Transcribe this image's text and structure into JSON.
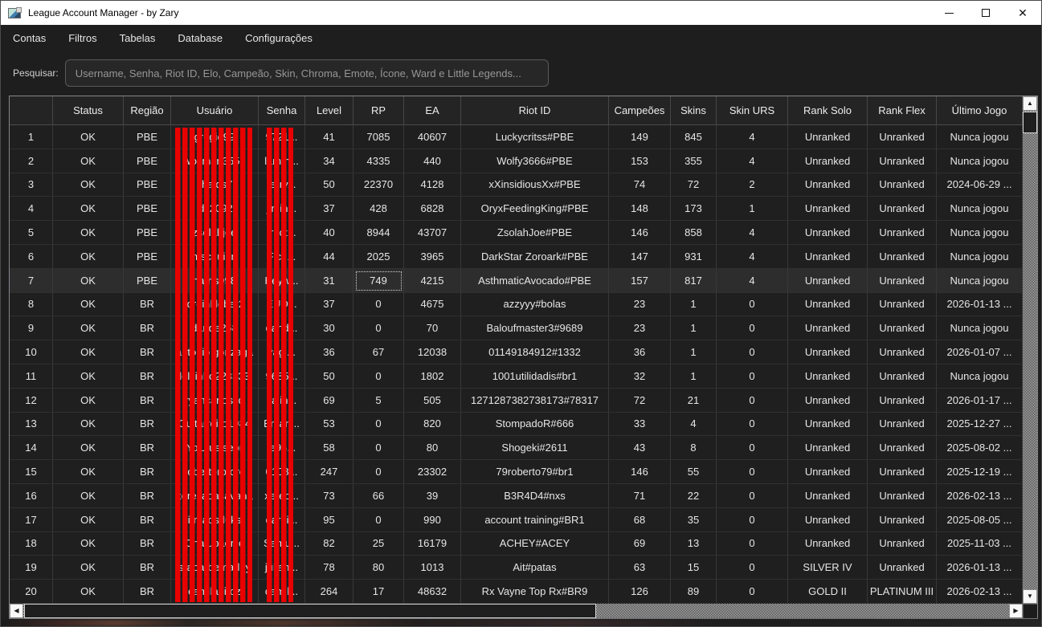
{
  "window": {
    "title": "League Account Manager - by Zary"
  },
  "titlebar": {
    "minimize": "—",
    "maximize": "",
    "close": "✕"
  },
  "menu": {
    "items": [
      "Contas",
      "Filtros",
      "Tabelas",
      "Database",
      "Configurações"
    ]
  },
  "search": {
    "label": "Pesquisar:",
    "placeholder": "Username, Senha, Riot ID, Elo, Campeão, Skin, Chroma, Emote, Ícone, Ward e Little Legends...",
    "value": ""
  },
  "table": {
    "columns": [
      "",
      "Status",
      "Região",
      "Usuário",
      "Senha",
      "Level",
      "RP",
      "EA",
      "Riot ID",
      "Campeões",
      "Skins",
      "Skin URS",
      "Rank Solo",
      "Rank Flex",
      "Último Jogo"
    ],
    "selected_row_index": 6,
    "focused_cell": {
      "row_index": 6,
      "col_index": 6
    },
    "rows": [
      [
        "1",
        "OK",
        "PBE",
        "gregie99",
        "9721...",
        "41",
        "7085",
        "40607",
        "Luckycritss#PBE",
        "149",
        "845",
        "4",
        "Unranked",
        "Unranked",
        "Nunca jogou"
      ],
      [
        "2",
        "OK",
        "PBE",
        "wolfman3555",
        "lamth...",
        "34",
        "4335",
        "440",
        "Wolfy3666#PBE",
        "153",
        "355",
        "4",
        "Unranked",
        "Unranked",
        "Nunca jogou"
      ],
      [
        "3",
        "OK",
        "PBE",
        "chaids7",
        "terry...",
        "50",
        "22370",
        "4128",
        "xXinsidiousXx#PBE",
        "74",
        "72",
        "2",
        "Unranked",
        "Unranked",
        "2024-06-29 ..."
      ],
      [
        "4",
        "OK",
        "PBE",
        "idc2092",
        "jimin...",
        "37",
        "428",
        "6828",
        "OryxFeedingKing#PBE",
        "148",
        "173",
        "1",
        "Unranked",
        "Unranked",
        "Nunca jogou"
      ],
      [
        "5",
        "OK",
        "PBE",
        "zsolahjoe",
        "tract...",
        "40",
        "8944",
        "43707",
        "ZsolahJoe#PBE",
        "146",
        "858",
        "4",
        "Unranked",
        "Unranked",
        "Nunca jogou"
      ],
      [
        "6",
        "OK",
        "PBE",
        "mscquinn",
        "Ficq...",
        "44",
        "2025",
        "3965",
        "DarkStar Zoroark#PBE",
        "147",
        "931",
        "4",
        "Unranked",
        "Unranked",
        "Nunca jogou"
      ],
      [
        "7",
        "OK",
        "PBE",
        "harris998",
        "Keyw...",
        "31",
        "749",
        "4215",
        "AsthmaticAvocado#PBE",
        "157",
        "817",
        "4",
        "Unranked",
        "Unranked",
        "Nunca jogou"
      ],
      [
        "8",
        "OK",
        "BR",
        "jorginkleber2",
        "EUD...",
        "37",
        "0",
        "4675",
        "azzyyy#bolas",
        "23",
        "1",
        "0",
        "Unranked",
        "Unranked",
        "2026-01-13 ..."
      ],
      [
        "9",
        "OK",
        "BR",
        "dande258",
        "dand...",
        "30",
        "0",
        "70",
        "Baloufmaster3#9689",
        "23",
        "1",
        "0",
        "Unranked",
        "Unranked",
        "Nunca jogou"
      ],
      [
        "10",
        "OK",
        "BR",
        "antonio gonzaga",
        "vagi...",
        "36",
        "67",
        "12038",
        "01149184912#1332",
        "36",
        "1",
        "0",
        "Unranked",
        "Unranked",
        "2026-01-07 ..."
      ],
      [
        "11",
        "OK",
        "BR",
        "lolzinho223333",
        "9685...",
        "50",
        "0",
        "1802",
        "1001utilidadis#br1",
        "32",
        "1",
        "0",
        "Unranked",
        "Unranked",
        "Nunca jogou"
      ],
      [
        "12",
        "OK",
        "BR",
        "ryancarloscd",
        "salin...",
        "69",
        "5",
        "505",
        "1271287382738173#78317",
        "72",
        "21",
        "0",
        "Unranked",
        "Unranked",
        "2026-01-17 ..."
      ],
      [
        "13",
        "OK",
        "BR",
        "Guitarreiro1984",
        "Eman...",
        "53",
        "0",
        "820",
        "StompadoR#666",
        "33",
        "4",
        "0",
        "Unranked",
        "Unranked",
        "2025-12-27 ..."
      ],
      [
        "14",
        "OK",
        "BR",
        "Yolutusiseor",
        "le96...",
        "58",
        "0",
        "80",
        "Shogeki#2611",
        "43",
        "8",
        "0",
        "Unranked",
        "Unranked",
        "2025-08-02 ..."
      ],
      [
        "15",
        "OK",
        "BR",
        "robertorororo",
        "0108...",
        "247",
        "0",
        "23302",
        "79roberto79#br1",
        "146",
        "55",
        "0",
        "Unranked",
        "Unranked",
        "2025-12-19 ..."
      ],
      [
        "16",
        "OK",
        "BR",
        "xerecadasavana",
        "xerec...",
        "73",
        "66",
        "39",
        "B3R4D4#nxs",
        "71",
        "22",
        "0",
        "Unranked",
        "Unranked",
        "2026-02-13 ..."
      ],
      [
        "17",
        "OK",
        "BR",
        "irmaosduks",
        "dardi...",
        "95",
        "0",
        "990",
        "account training#BR1",
        "68",
        "35",
        "0",
        "Unranked",
        "Unranked",
        "2025-08-05 ..."
      ],
      [
        "18",
        "OK",
        "BR",
        "Chatubaenic",
        "Samu...",
        "82",
        "25",
        "16179",
        "ACHEY#ACEY",
        "69",
        "13",
        "0",
        "Unranked",
        "Unranked",
        "2025-11-03 ..."
      ],
      [
        "19",
        "OK",
        "BR",
        "srabarbemarley",
        "julian...",
        "78",
        "80",
        "1013",
        "Ait#patas",
        "63",
        "15",
        "0",
        "SILVER IV",
        "Unranked",
        "2026-01-13 ..."
      ],
      [
        "20",
        "OK",
        "BR",
        "camilaeiroz",
        "camil...",
        "264",
        "17",
        "48632",
        "Rx Vayne Top Rx#BR9",
        "126",
        "89",
        "0",
        "GOLD II",
        "PLATINUM III",
        "2026-02-13 ..."
      ]
    ]
  },
  "scrollbars": {
    "vertical": true,
    "horizontal": true
  },
  "colors": {
    "redaction_stripes": "#e90000",
    "window_bg": "#1e1e1e",
    "titlebar_bg": "#ffffff",
    "selected_row_bg": "#2d2d2e"
  }
}
